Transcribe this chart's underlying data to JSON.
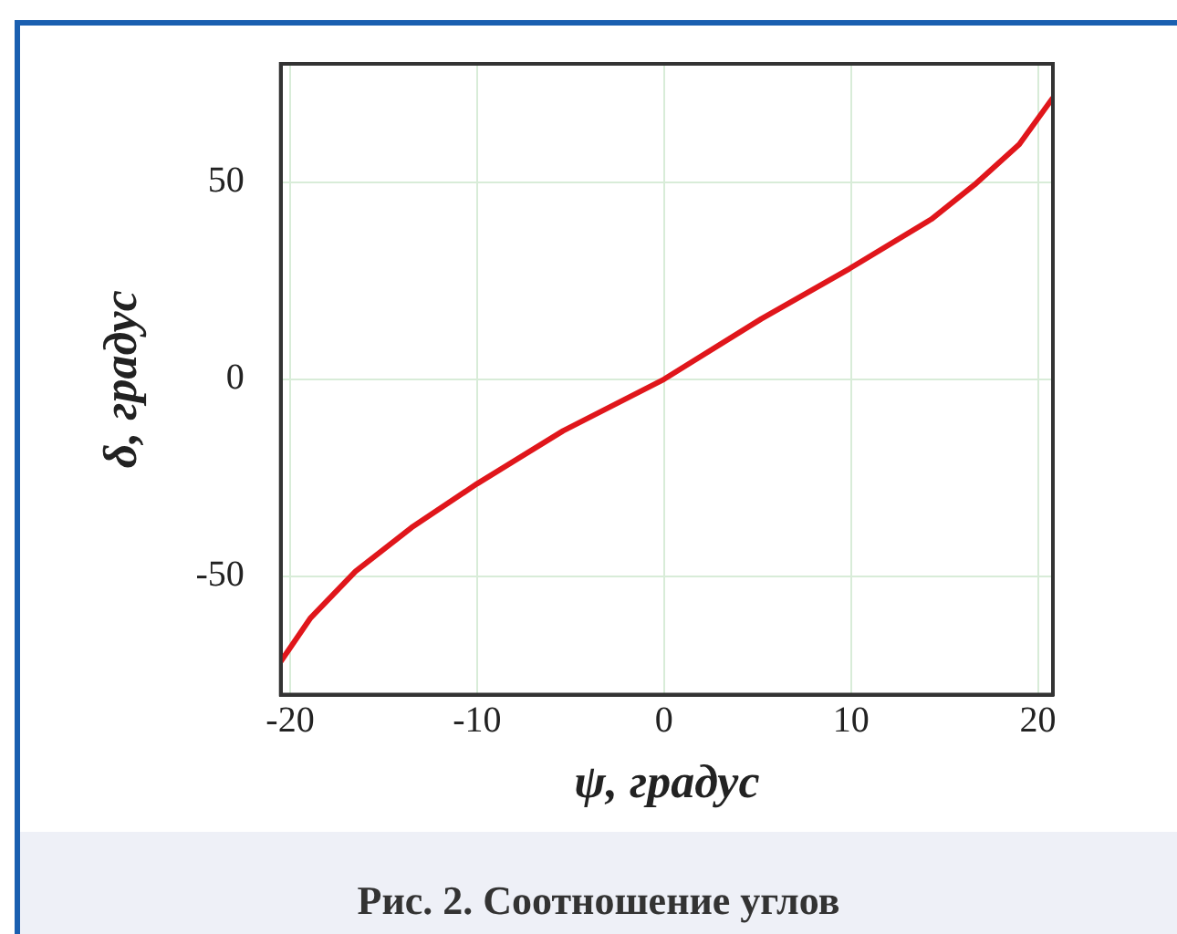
{
  "chart_data": {
    "type": "line",
    "xlabel": "ψ, градус",
    "ylabel": "δ, градус",
    "annotations": [
      "Рис. 2. Соотношение углов"
    ],
    "x": [
      -20.5,
      -18.9,
      -16.5,
      -13.5,
      -10,
      -5.4,
      0,
      5.2,
      9.9,
      14.3,
      16.6,
      19,
      20.8
    ],
    "series": [
      {
        "color": "#e0161b",
        "values": [
          -71.6,
          -60.5,
          -48.7,
          -37.6,
          -26.5,
          -13.1,
          0,
          15.3,
          28,
          40.6,
          49.3,
          59.6,
          71.4
        ]
      }
    ],
    "xlim": [
      -20.5,
      20.8
    ],
    "xticks": [
      -20,
      -10,
      0,
      10,
      20
    ],
    "ylim": [
      -80,
      80
    ],
    "yticks": [
      -50,
      0,
      50
    ],
    "grid": true,
    "legend": false,
    "marker": "none",
    "line_style": "solid"
  }
}
